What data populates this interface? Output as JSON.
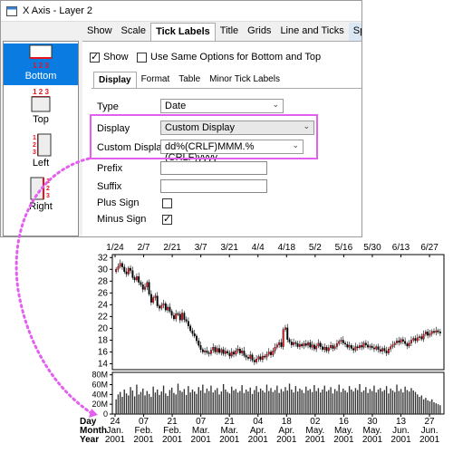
{
  "window": {
    "title": "X Axis - Layer 2"
  },
  "tabs": [
    "Show",
    "Scale",
    "Tick Labels",
    "Title",
    "Grids",
    "Line and Ticks",
    "Special Ticks"
  ],
  "sidebar": {
    "items": [
      {
        "label": "Bottom",
        "icon": "axis-bottom-icon",
        "active": true
      },
      {
        "label": "Top",
        "icon": "axis-top-icon"
      },
      {
        "label": "Left",
        "icon": "axis-left-icon"
      },
      {
        "label": "Right",
        "icon": "axis-right-icon"
      }
    ],
    "tick_numbers": "1 2 3"
  },
  "show": {
    "label": "Show",
    "checked": true
  },
  "same_options": {
    "label": "Use Same Options for Bottom and Top",
    "checked": false
  },
  "subtabs": [
    "Display",
    "Format",
    "Table",
    "Minor Tick Labels"
  ],
  "form": {
    "type_label": "Type",
    "type_value": "Date",
    "display_label": "Display",
    "display_value": "Custom Display",
    "custom_label": "Custom Display",
    "custom_value": "dd%(CRLF)MMM.%(CRLF)yyyy",
    "prefix_label": "Prefix",
    "suffix_label": "Suffix",
    "plus_label": "Plus Sign",
    "plus_checked": false,
    "minus_label": "Minus Sign",
    "minus_checked": true
  },
  "colors": {
    "accent": "#0a7be0",
    "highlight": "#e35ff0",
    "up_candle": "#e8121e",
    "down_candle": "#000000"
  },
  "chart_data": {
    "type": "candlestick_volume",
    "top_x_labels": [
      "1/24",
      "2/7",
      "2/21",
      "3/7",
      "3/21",
      "4/4",
      "4/18",
      "5/2",
      "5/16",
      "5/30",
      "6/13",
      "6/27"
    ],
    "price_yticks": [
      "14",
      "16",
      "18",
      "20",
      "22",
      "24",
      "26",
      "28",
      "30",
      "32"
    ],
    "price_ylim": [
      13,
      32.5
    ],
    "volume_yticks": [
      "0",
      "20M",
      "40M",
      "60M",
      "80M"
    ],
    "volume_ylim": [
      0,
      85000000
    ],
    "bottom_axis": {
      "row_labels": [
        "Day",
        "Month",
        "Year"
      ],
      "days": [
        "24",
        "07",
        "21",
        "07",
        "21",
        "04",
        "18",
        "02",
        "16",
        "30",
        "13",
        "27"
      ],
      "months": [
        "Jan.",
        "Feb.",
        "Feb.",
        "Mar.",
        "Mar.",
        "Apr.",
        "Apr.",
        "May.",
        "May.",
        "May.",
        "Jun.",
        "Jun."
      ],
      "years": [
        "2001",
        "2001",
        "2001",
        "2001",
        "2001",
        "2001",
        "2001",
        "2001",
        "2001",
        "2001",
        "2001",
        "2001"
      ]
    },
    "close_series": [
      30,
      30.5,
      31,
      30.4,
      29.6,
      29.2,
      30.2,
      29.8,
      28.6,
      28.2,
      28.8,
      27.8,
      27.4,
      26.6,
      27.0,
      27.8,
      25.8,
      24.4,
      25.2,
      25.5,
      23.8,
      23.4,
      23.9,
      24.2,
      23.1,
      23.6,
      22.9,
      22.2,
      21.6,
      22.5,
      22.4,
      21.4,
      22.6,
      21.5,
      21.2,
      20.4,
      19.6,
      19.1,
      18.7,
      17.9,
      17.1,
      16.4,
      16.0,
      16.2,
      15.9,
      15.7,
      16.3,
      16.8,
      16.0,
      16.6,
      15.9,
      16.4,
      15.7,
      16.1,
      15.8,
      15.3,
      16.0,
      15.6,
      16.2,
      16.5,
      15.8,
      16.2,
      15.4,
      15.1,
      14.9,
      15.5,
      14.6,
      14.3,
      14.8,
      15.2,
      14.7,
      15.3,
      15.1,
      15.6,
      16.0,
      15.5,
      16.2,
      16.8,
      17.2,
      17.6,
      16.9,
      19.8,
      20.1,
      18.1,
      17.7,
      17.2,
      17.6,
      17.4,
      16.9,
      17.3,
      17.0,
      17.4,
      17.1,
      17.6,
      16.8,
      17.2,
      16.5,
      17.0,
      17.5,
      16.9,
      16.4,
      16.8,
      16.2,
      16.7,
      17.1,
      16.6,
      16.9,
      17.4,
      17.8,
      18.0,
      17.5,
      17.3,
      16.8,
      17.1,
      16.6,
      16.3,
      16.9,
      16.7,
      17.1,
      16.8,
      17.5,
      17.2,
      16.8,
      17.0,
      16.7,
      16.5,
      16.9,
      16.4,
      16.1,
      16.6,
      16.2,
      15.8,
      16.5,
      16.9,
      17.2,
      17.5,
      17.9,
      17.6,
      18.1,
      17.8,
      17.4,
      17.0,
      17.5,
      18.0,
      18.3,
      17.9,
      18.4,
      18.6,
      18.2,
      19.0,
      19.4,
      18.8,
      19.1,
      19.5,
      19.3,
      19.6,
      19.4,
      19.2
    ],
    "volume_series": [
      30,
      40,
      45,
      35,
      50,
      42,
      38,
      55,
      48,
      36,
      60,
      40,
      45,
      52,
      38,
      47,
      41,
      35,
      56,
      44,
      50,
      39,
      46,
      58,
      42,
      37,
      49,
      54,
      43,
      40,
      62,
      48,
      45,
      51,
      39,
      57,
      44,
      50,
      46,
      41,
      55,
      48,
      60,
      43,
      52,
      47,
      58,
      44,
      49,
      53,
      40,
      46,
      61,
      50,
      45,
      42,
      56,
      48,
      51,
      44,
      47,
      59,
      43,
      50,
      46,
      54,
      41,
      49,
      57,
      45,
      52,
      48,
      44,
      60,
      47,
      53,
      45,
      49,
      58,
      43,
      51,
      46,
      55,
      48,
      62,
      50,
      44,
      57,
      46,
      52,
      49,
      43,
      56,
      48,
      51,
      45,
      59,
      47,
      53,
      44,
      50,
      58,
      46,
      49,
      55,
      42,
      51,
      47,
      60,
      45,
      52,
      48,
      44,
      57,
      50,
      46,
      53,
      49,
      61,
      45,
      48,
      55,
      43,
      51,
      47,
      58,
      44,
      50,
      53,
      46,
      49,
      57,
      42,
      52,
      48,
      45,
      60,
      47,
      51,
      44,
      56,
      49,
      46,
      53,
      48,
      45,
      40,
      35,
      38,
      30,
      33,
      28,
      26,
      30,
      24,
      22,
      20,
      18
    ]
  }
}
